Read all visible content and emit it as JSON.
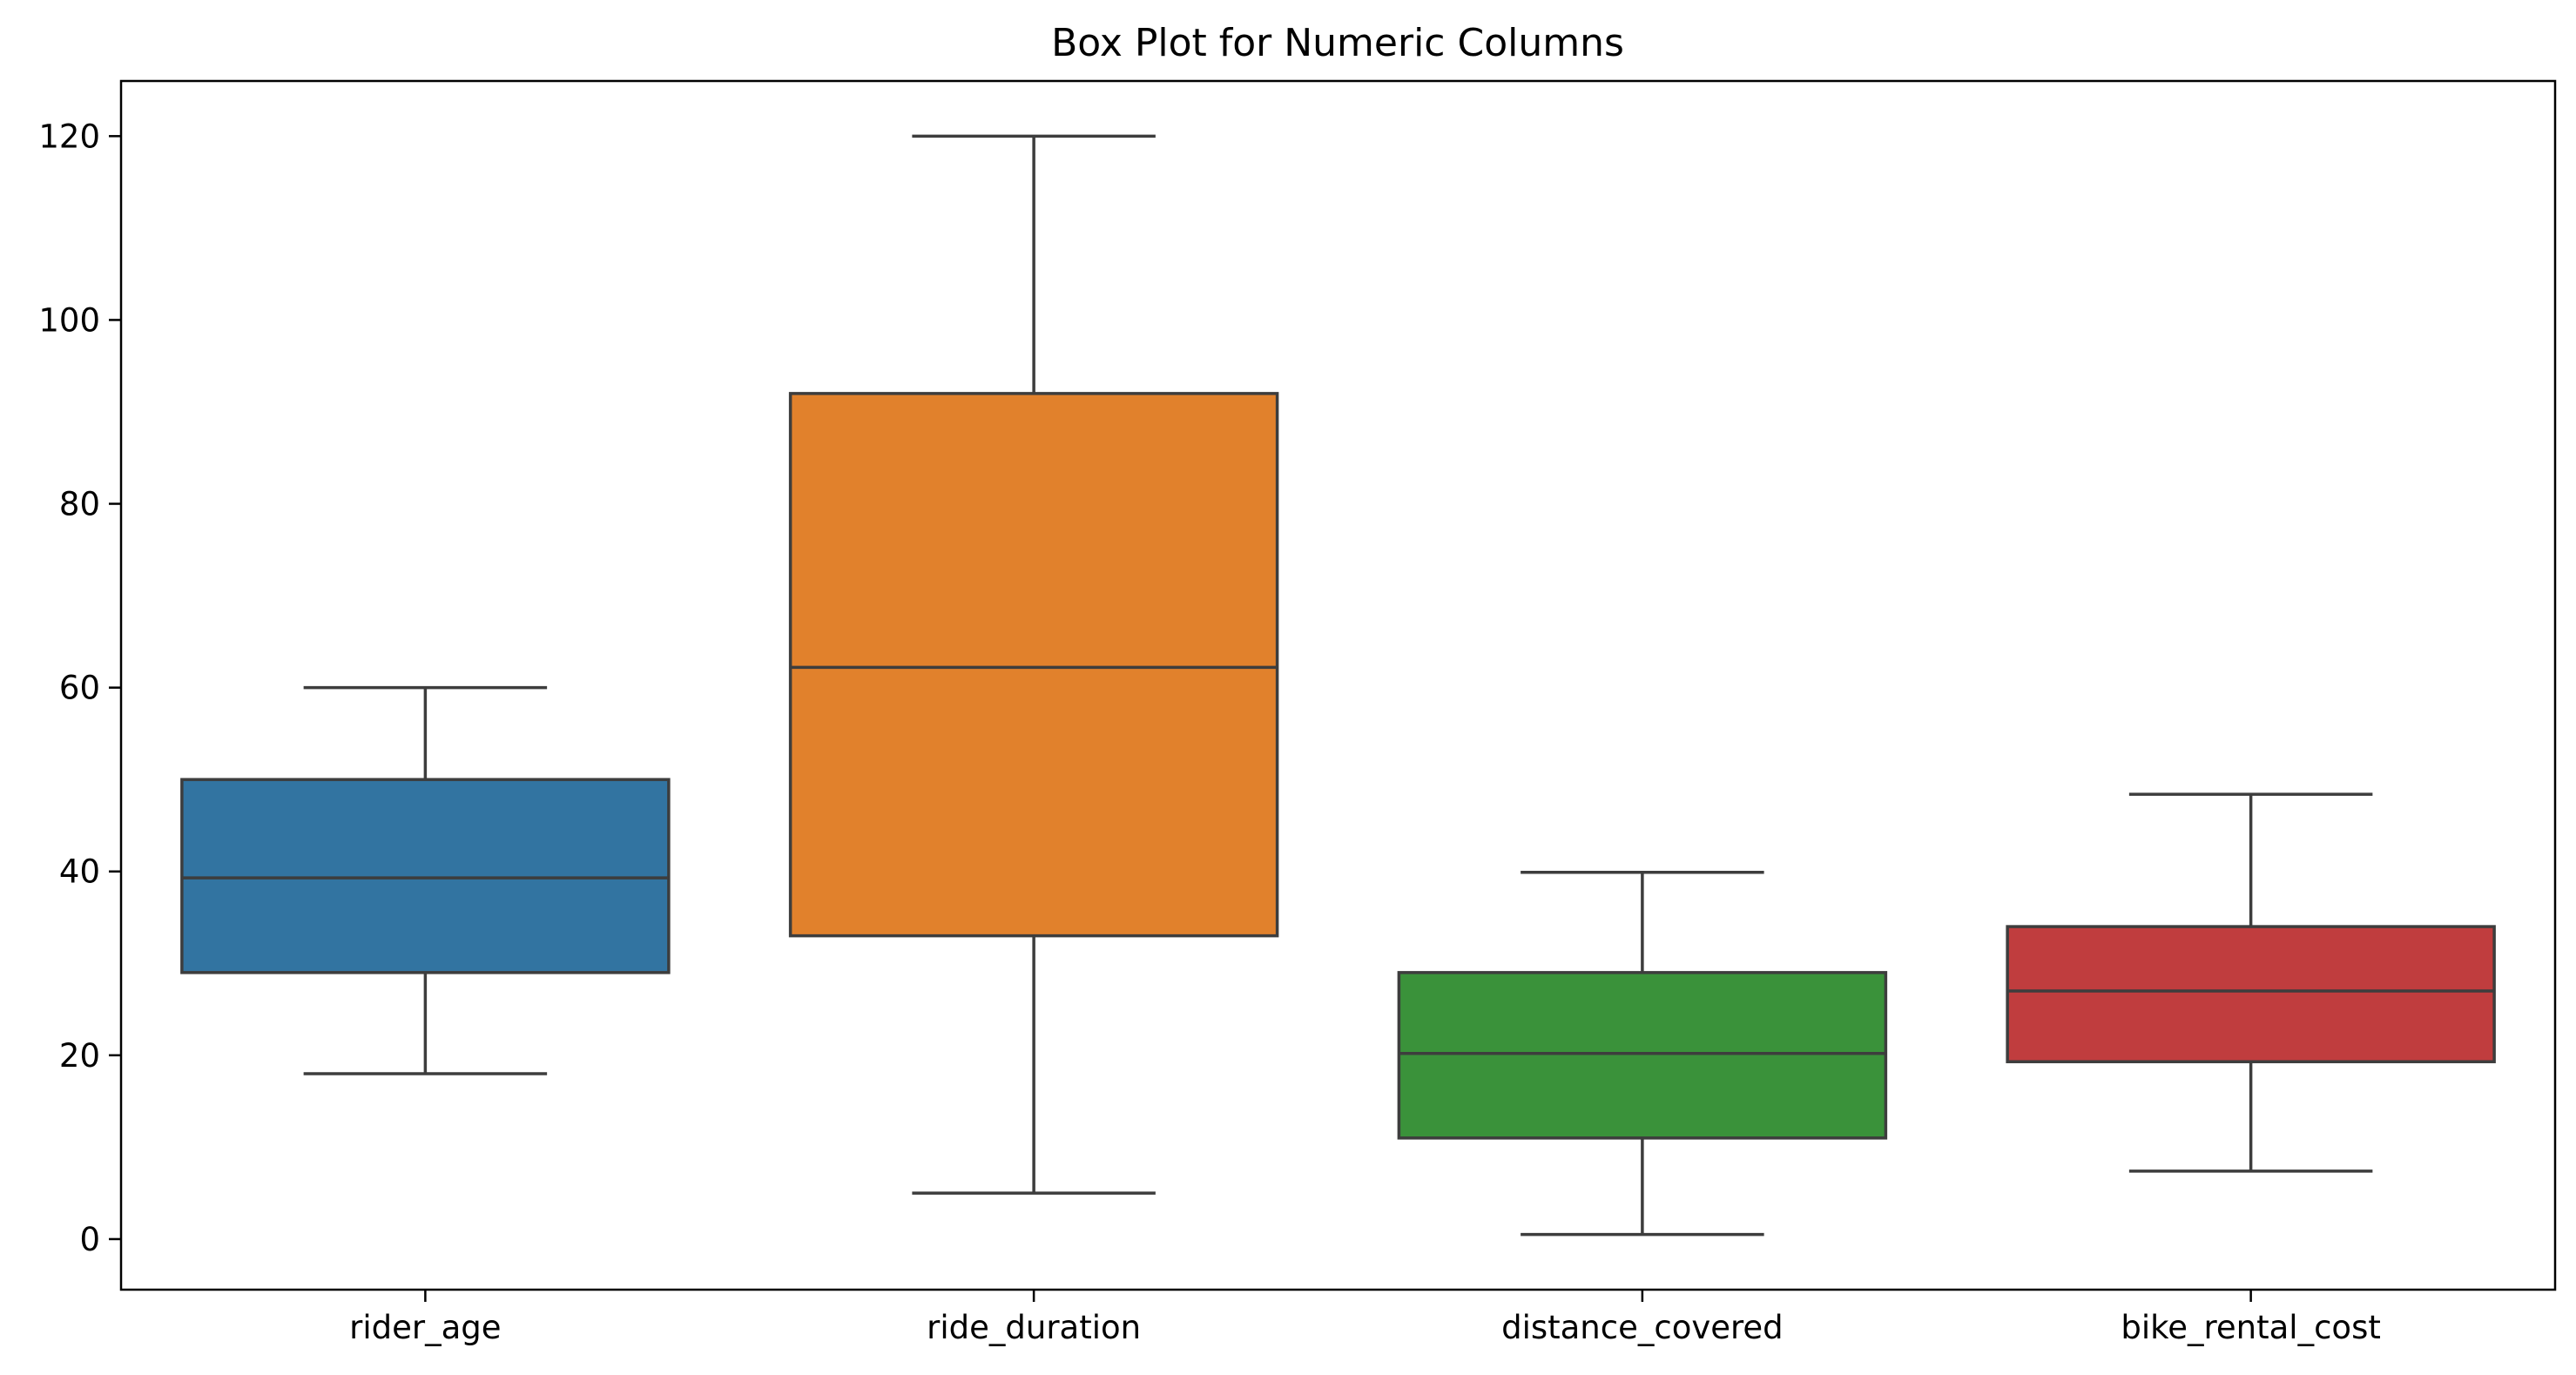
{
  "chart_data": {
    "type": "box",
    "title": "Box Plot for Numeric Columns",
    "xlabel": "",
    "ylabel": "",
    "ylim": [
      -5.5,
      126
    ],
    "yticks": [
      0,
      20,
      40,
      60,
      80,
      100,
      120
    ],
    "categories": [
      "rider_age",
      "ride_duration",
      "distance_covered",
      "bike_rental_cost"
    ],
    "grid": false,
    "legend": "none",
    "series": [
      {
        "category": "rider_age",
        "whisker_low": 18,
        "q1": 29,
        "median": 39.3,
        "q3": 50,
        "whisker_high": 60,
        "color": "#3274a1"
      },
      {
        "category": "ride_duration",
        "whisker_low": 5,
        "q1": 33,
        "median": 62.2,
        "q3": 92,
        "whisker_high": 120,
        "color": "#e1812c"
      },
      {
        "category": "distance_covered",
        "whisker_low": 0.5,
        "q1": 11,
        "median": 20.2,
        "q3": 29,
        "whisker_high": 39.9,
        "color": "#3a923a"
      },
      {
        "category": "bike_rental_cost",
        "whisker_low": 7.4,
        "q1": 19.3,
        "median": 27,
        "q3": 34,
        "whisker_high": 48.4,
        "color": "#c03d3e"
      }
    ]
  }
}
